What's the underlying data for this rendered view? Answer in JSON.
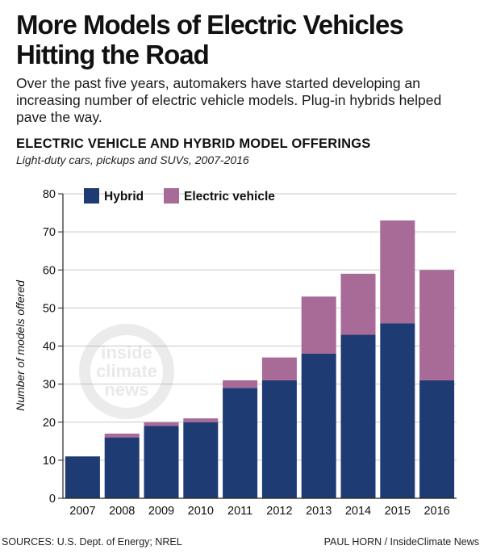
{
  "headline": "More Models of Electric Vehicles Hitting the Road",
  "dek": "Over the past five years, automakers have started developing an increasing number of electric vehicle models. Plug-in hybrids helped pave the way.",
  "watermark": [
    "inside",
    "climate",
    "news"
  ],
  "footer": {
    "sources": "SOURCES: U.S. Dept. of Energy; NREL",
    "credit": "PAUL HORN / InsideClimate News"
  },
  "colors": {
    "hybrid": "#1f3b73",
    "electric": "#a86a96"
  },
  "chart_data": {
    "type": "bar",
    "stacked": true,
    "title": "ELECTRIC VEHICLE AND HYBRID MODEL OFFERINGS",
    "subtitle": "Light-duty cars, pickups and SUVs, 2007-2016",
    "xlabel": "",
    "ylabel": "Number of models offered",
    "ylim": [
      0,
      80
    ],
    "yticks": [
      0,
      10,
      20,
      30,
      40,
      50,
      60,
      70,
      80
    ],
    "grid": true,
    "legend_position": "top-left",
    "categories": [
      "2007",
      "2008",
      "2009",
      "2010",
      "2011",
      "2012",
      "2013",
      "2014",
      "2015",
      "2016"
    ],
    "series": [
      {
        "name": "Hybrid",
        "color": "#1f3b73",
        "values": [
          11,
          16,
          19,
          20,
          29,
          31,
          38,
          43,
          46,
          31
        ]
      },
      {
        "name": "Electric vehicle",
        "color": "#a86a96",
        "values": [
          0,
          1,
          1,
          1,
          2,
          6,
          15,
          16,
          27,
          29
        ]
      }
    ]
  }
}
